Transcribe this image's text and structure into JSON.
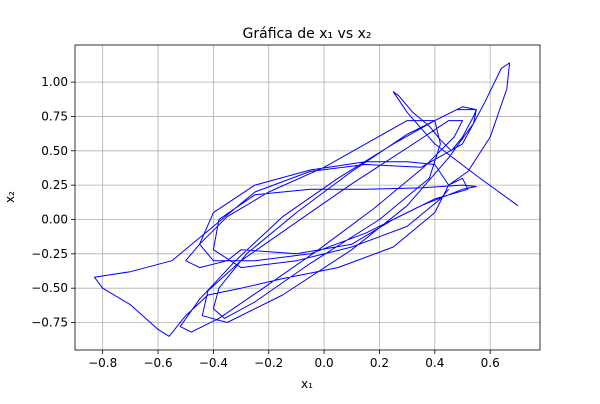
{
  "chart_data": {
    "type": "line",
    "title": "Gráfica de x₁ vs x₂",
    "x_label": "x₁",
    "y_label": "x₂",
    "xlim": [
      -0.9,
      0.78
    ],
    "ylim": [
      -0.95,
      1.27
    ],
    "xticks": [
      {
        "value": -0.8,
        "label": "−0.8"
      },
      {
        "value": -0.6,
        "label": "−0.6"
      },
      {
        "value": -0.4,
        "label": "−0.4"
      },
      {
        "value": -0.2,
        "label": "−0.2"
      },
      {
        "value": 0,
        "label": "0.0"
      },
      0.2,
      0.4,
      0.6
    ],
    "yticks": [
      {
        "value": -0.75,
        "label": "−0.75"
      },
      {
        "value": -0.5,
        "label": "−0.50"
      },
      {
        "value": -0.25,
        "label": "−0.25"
      },
      {
        "value": 0,
        "label": "0.00"
      },
      0.25,
      {
        "value": 0.5,
        "label": "0.50"
      },
      0.75,
      {
        "value": 1,
        "label": "1.00"
      }
    ],
    "grid": true,
    "series": [
      {
        "color": "#0000ff",
        "x": [
          0.7,
          0.55,
          0.4,
          0.3,
          0.25,
          0.27,
          0.32,
          0.38,
          0.42,
          0.46,
          0.5,
          0.54,
          0.55,
          0.5,
          0.4,
          0.25,
          0.05,
          -0.15,
          -0.32,
          -0.45,
          -0.52,
          -0.48,
          -0.38,
          -0.22,
          -0.02,
          0.18,
          0.36,
          0.47,
          0.5,
          0.45,
          0.3,
          0.1,
          -0.1,
          -0.3,
          -0.42,
          -0.44,
          -0.35,
          -0.15,
          0.1,
          0.3,
          0.45,
          0.54,
          0.55,
          0.48,
          0.3,
          0.1,
          -0.1,
          -0.28,
          -0.38,
          -0.4,
          -0.36,
          -0.25,
          -0.05,
          0.2,
          0.38,
          0.42,
          0.4,
          0.3,
          0.15,
          0.0,
          -0.2,
          -0.35,
          -0.45,
          -0.5,
          -0.45,
          -0.35,
          -0.3,
          -0.1,
          0.1,
          0.25,
          0.4,
          0.52,
          0.5,
          0.45,
          0.52,
          0.6,
          0.66,
          0.67,
          0.64,
          0.58,
          0.5,
          0.35,
          0.15,
          -0.05,
          -0.25,
          -0.4,
          -0.55,
          -0.7,
          -0.83,
          -0.8,
          -0.7,
          -0.6,
          -0.56,
          -0.5,
          -0.42,
          -0.3,
          -0.15,
          0.05,
          0.25,
          0.4,
          0.45,
          0.4,
          0.3,
          0.15,
          -0.05,
          -0.25,
          -0.4,
          -0.45,
          -0.4,
          -0.25,
          -0.05,
          0.15,
          0.35,
          0.5,
          0.55,
          0.5,
          0.35,
          0.15,
          -0.05,
          -0.25,
          -0.38,
          -0.4,
          -0.3,
          -0.1,
          0.1,
          0.3,
          0.42,
          0.45
        ],
        "values": [
          0.1,
          0.32,
          0.55,
          0.78,
          0.93,
          0.9,
          0.78,
          0.68,
          0.58,
          0.5,
          0.6,
          0.75,
          0.8,
          0.82,
          0.72,
          0.55,
          0.3,
          0.02,
          -0.3,
          -0.58,
          -0.78,
          -0.82,
          -0.72,
          -0.5,
          -0.22,
          0.08,
          0.38,
          0.6,
          0.72,
          0.72,
          0.52,
          0.26,
          -0.02,
          -0.3,
          -0.52,
          -0.7,
          -0.75,
          -0.55,
          -0.22,
          0.1,
          0.45,
          0.7,
          0.8,
          0.8,
          0.62,
          0.35,
          0.05,
          -0.25,
          -0.5,
          -0.65,
          -0.72,
          -0.6,
          -0.32,
          0.0,
          0.3,
          0.55,
          0.72,
          0.72,
          0.55,
          0.38,
          0.2,
          0.02,
          -0.18,
          -0.3,
          -0.35,
          -0.3,
          -0.22,
          -0.25,
          -0.18,
          0.0,
          0.15,
          0.22,
          0.3,
          0.25,
          0.35,
          0.6,
          0.95,
          1.14,
          1.1,
          0.85,
          0.55,
          0.38,
          0.4,
          0.35,
          0.2,
          -0.05,
          -0.3,
          -0.38,
          -0.42,
          -0.5,
          -0.62,
          -0.8,
          -0.85,
          -0.7,
          -0.55,
          -0.5,
          -0.43,
          -0.35,
          -0.2,
          0.05,
          0.25,
          0.4,
          0.42,
          0.42,
          0.36,
          0.25,
          0.05,
          -0.18,
          -0.3,
          -0.3,
          -0.25,
          -0.1,
          0.1,
          0.22,
          0.24,
          0.25,
          0.23,
          0.22,
          0.22,
          0.18,
          0.0,
          -0.22,
          -0.35,
          -0.3,
          -0.2,
          -0.05,
          0.15,
          0.22
        ]
      }
    ]
  }
}
